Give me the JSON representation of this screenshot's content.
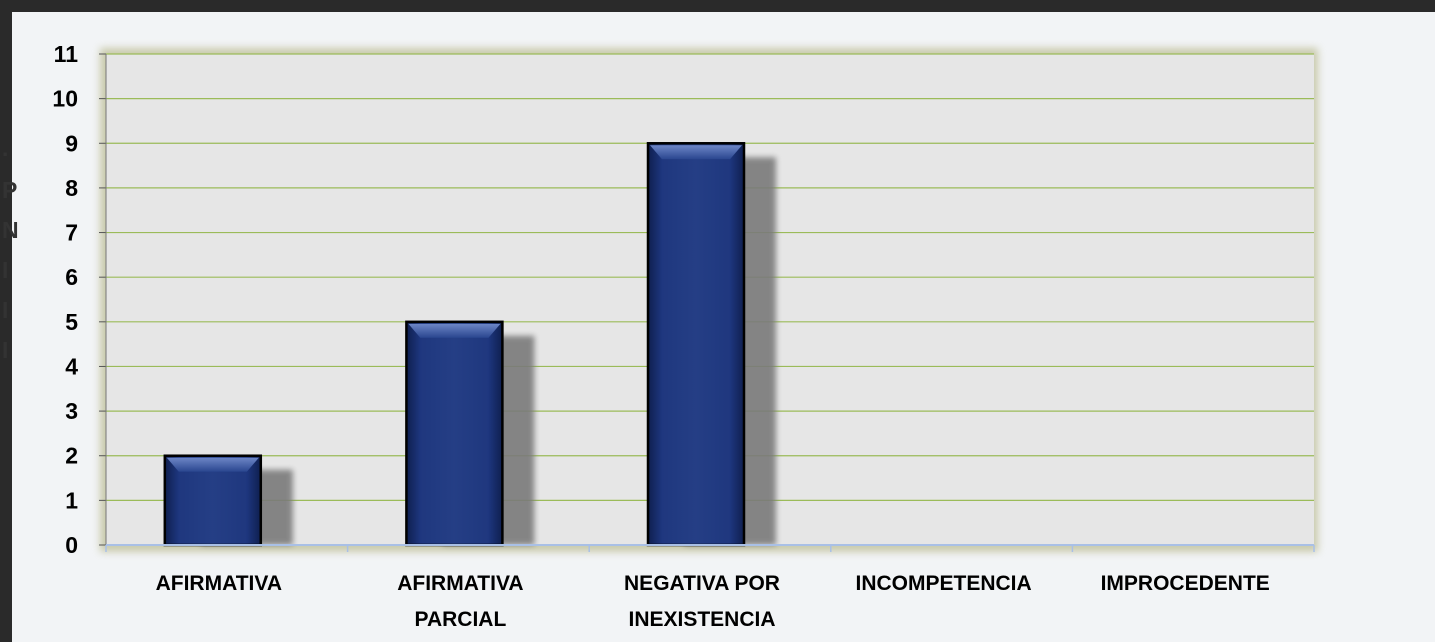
{
  "chart_data": {
    "type": "bar",
    "title": "",
    "xlabel": "",
    "ylabel": "",
    "categories": [
      [
        "AFIRMATIVA"
      ],
      [
        "AFIRMATIVA",
        "PARCIAL"
      ],
      [
        "NEGATIVA POR",
        "INEXISTENCIA"
      ],
      [
        "INCOMPETENCIA"
      ],
      [
        "IMPROCEDENTE"
      ]
    ],
    "values": [
      2,
      5,
      9,
      0,
      0
    ],
    "ylim": [
      0,
      11
    ],
    "yticks": [
      0,
      1,
      2,
      3,
      4,
      5,
      6,
      7,
      8,
      9,
      10,
      11
    ],
    "grid": true,
    "legend": "none",
    "colors": {
      "bar": "#1b2f6e",
      "bar_highlight": "#3b5aa8",
      "shadow": "#7a7a7a",
      "plot_bg": "#e6e6e6",
      "gridline": "#9bbb59",
      "frame": "#2a2a2a",
      "panel": "#f2f4f6"
    }
  }
}
